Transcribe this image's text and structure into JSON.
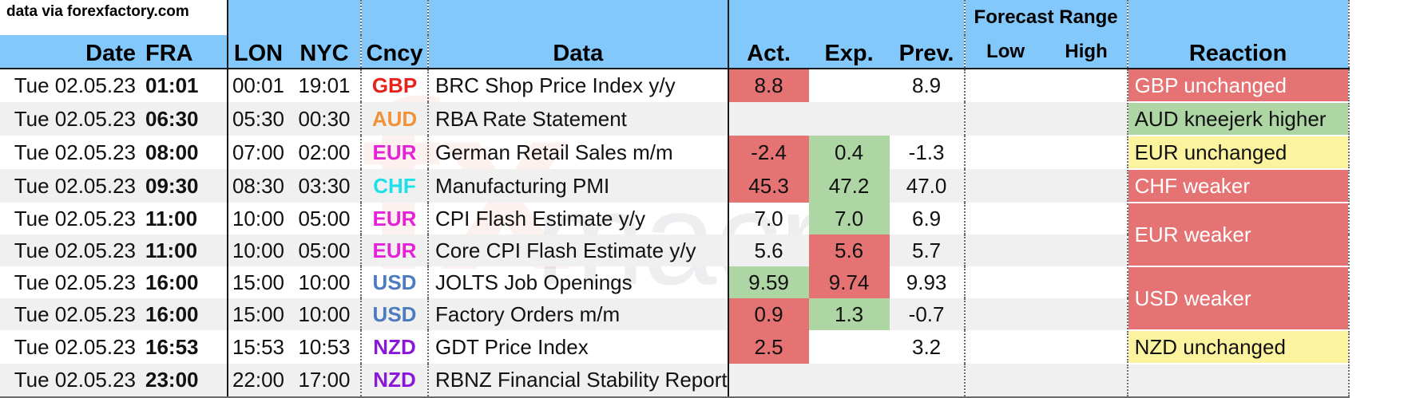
{
  "source_note": "data via forexfactory.com",
  "watermark": {
    "big": "fx",
    "word": "macro"
  },
  "colors": {
    "header_bg": "#82c8fa",
    "red": "#e57373",
    "green": "#aed5a4",
    "yellow": "#fbf39e",
    "GBP": "#e8221b",
    "AUD": "#f0923a",
    "EUR": "#e522d6",
    "CHF": "#1fe0e8",
    "USD": "#4d7bbf",
    "NZD": "#8b17d8"
  },
  "headers": {
    "date": "Date",
    "fra": "FRA",
    "lon": "LON",
    "nyc": "NYC",
    "ccy": "Cncy",
    "data": "Data",
    "act": "Act.",
    "exp": "Exp.",
    "prev": "Prev.",
    "forecast_range": "Forecast Range",
    "low": "Low",
    "high": "High",
    "reaction": "Reaction"
  },
  "rows": [
    {
      "date": "Tue 02.05.23",
      "fra": "01:01",
      "lon": "00:01",
      "nyc": "19:01",
      "ccy": "GBP",
      "data": "BRC Shop Price Index y/y",
      "act": "8.8",
      "exp": "",
      "prev": "8.9",
      "low": "",
      "high": ""
    },
    {
      "date": "Tue 02.05.23",
      "fra": "06:30",
      "lon": "05:30",
      "nyc": "00:30",
      "ccy": "AUD",
      "data": "RBA Rate Statement",
      "act": "",
      "exp": "",
      "prev": "",
      "low": "",
      "high": ""
    },
    {
      "date": "Tue 02.05.23",
      "fra": "08:00",
      "lon": "07:00",
      "nyc": "02:00",
      "ccy": "EUR",
      "data": "German Retail Sales m/m",
      "act": "-2.4",
      "exp": "0.4",
      "prev": "-1.3",
      "low": "",
      "high": ""
    },
    {
      "date": "Tue 02.05.23",
      "fra": "09:30",
      "lon": "08:30",
      "nyc": "03:30",
      "ccy": "CHF",
      "data": "Manufacturing PMI",
      "act": "45.3",
      "exp": "47.2",
      "prev": "47.0",
      "low": "",
      "high": ""
    },
    {
      "date": "Tue 02.05.23",
      "fra": "11:00",
      "lon": "10:00",
      "nyc": "05:00",
      "ccy": "EUR",
      "data": "CPI Flash Estimate y/y",
      "act": "7.0",
      "exp": "7.0",
      "prev": "6.9",
      "low": "",
      "high": ""
    },
    {
      "date": "Tue 02.05.23",
      "fra": "11:00",
      "lon": "10:00",
      "nyc": "05:00",
      "ccy": "EUR",
      "data": "Core CPI Flash Estimate y/y",
      "act": "5.6",
      "exp": "5.6",
      "prev": "5.7",
      "low": "",
      "high": ""
    },
    {
      "date": "Tue 02.05.23",
      "fra": "16:00",
      "lon": "15:00",
      "nyc": "10:00",
      "ccy": "USD",
      "data": "JOLTS Job Openings",
      "act": "9.59",
      "exp": "9.74",
      "prev": "9.93",
      "low": "",
      "high": ""
    },
    {
      "date": "Tue 02.05.23",
      "fra": "16:00",
      "lon": "15:00",
      "nyc": "10:00",
      "ccy": "USD",
      "data": "Factory Orders m/m",
      "act": "0.9",
      "exp": "1.3",
      "prev": "-0.7",
      "low": "",
      "high": ""
    },
    {
      "date": "Tue 02.05.23",
      "fra": "16:53",
      "lon": "15:53",
      "nyc": "10:53",
      "ccy": "NZD",
      "data": "GDT Price Index",
      "act": "2.5",
      "exp": "",
      "prev": "3.2",
      "low": "",
      "high": ""
    },
    {
      "date": "Tue 02.05.23",
      "fra": "23:00",
      "lon": "22:00",
      "nyc": "17:00",
      "ccy": "NZD",
      "data": "RBNZ Financial Stability Report",
      "act": "",
      "exp": "",
      "prev": "",
      "low": "",
      "high": ""
    }
  ],
  "reactions": [
    {
      "text": "GBP unchanged",
      "color": "red"
    },
    {
      "text": "AUD kneejerk higher",
      "color": "green"
    },
    {
      "text": "EUR unchanged",
      "color": "yellow"
    },
    {
      "text": "CHF weaker",
      "color": "red"
    },
    {
      "text": "EUR weaker",
      "color": "red"
    },
    {
      "text": "USD weaker",
      "color": "red"
    },
    {
      "text": "NZD unchanged",
      "color": "yellow"
    },
    {
      "text": "",
      "color": ""
    }
  ]
}
